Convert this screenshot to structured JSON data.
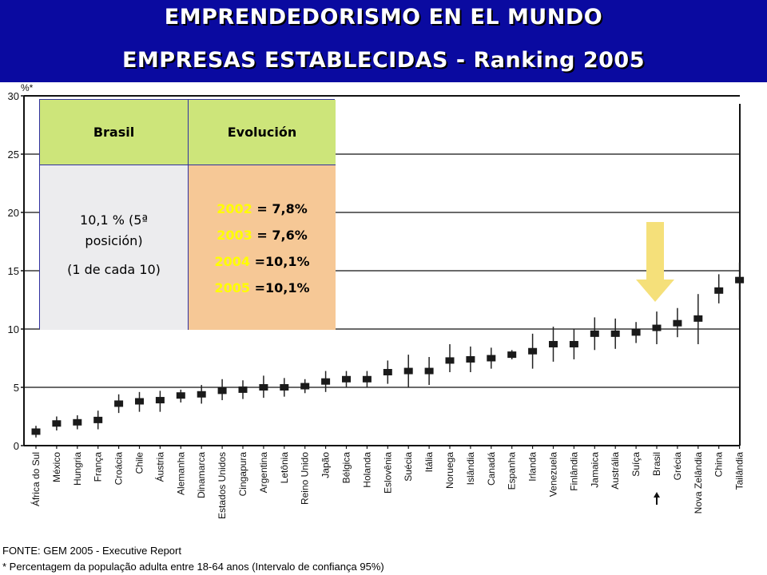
{
  "header": {
    "title1": "EMPRENDEDORISMO EN EL MUNDO",
    "title2": "EMPRESAS ESTABLECIDAS - Ranking 2005"
  },
  "table": {
    "col1_header": "Brasil",
    "col2_header": "Evolución",
    "brasil_line1": "10,1 % (5ª",
    "brasil_line2": "posición)",
    "brasil_line3": "(1 de cada 10)",
    "evolution": [
      {
        "year": "2002",
        "value": "= 7,8%"
      },
      {
        "year": "2003",
        "value": "= 7,6%"
      },
      {
        "year": "2004",
        "value": "=10,1%"
      },
      {
        "year": "2005",
        "value": "=10,1%"
      }
    ]
  },
  "footer": {
    "source": "FONTE: GEM 2005 - Executive Report",
    "note": "* Percentagem da população adulta entre 18-64 anos (Intervalo de confiança 95%)"
  },
  "colors": {
    "header_bg": "#0a0aa0",
    "table_header_bg": "#cde57a",
    "table_left_bg": "#ececee",
    "table_right_bg": "#f6c896",
    "year_text": "#ffff00",
    "arrow": "#f5e07a"
  },
  "chart_data": {
    "type": "errorbar",
    "ylabel": "%*",
    "ylim": [
      0,
      30
    ],
    "yticks": [
      0,
      5,
      10,
      15,
      20,
      25,
      30
    ],
    "grid": true,
    "highlight": "Brasil",
    "categories": [
      "África do Sul",
      "México",
      "Hungria",
      "França",
      "Croácia",
      "Chile",
      "Áustria",
      "Alemanha",
      "Dinamarca",
      "Estados Unidos",
      "Cingapura",
      "Argentina",
      "Letônia",
      "Reino Unido",
      "Japão",
      "Bélgica",
      "Holanda",
      "Eslovênia",
      "Suécia",
      "Itália",
      "Noruega",
      "Islândia",
      "Canadá",
      "Espanha",
      "Irlanda",
      "Venezuela",
      "Finlândia",
      "Jamaica",
      "Austrália",
      "Suíça",
      "Brasil",
      "Grécia",
      "Nova Zelândia",
      "China",
      "Tailândia"
    ],
    "values": [
      1.2,
      1.9,
      2.0,
      2.2,
      3.6,
      3.8,
      3.9,
      4.3,
      4.4,
      4.7,
      4.8,
      5.0,
      5.0,
      5.1,
      5.5,
      5.7,
      5.7,
      6.3,
      6.4,
      6.4,
      7.3,
      7.4,
      7.5,
      7.8,
      8.1,
      8.7,
      8.7,
      9.6,
      9.6,
      9.7,
      10.1,
      10.5,
      10.9,
      13.3,
      14.2
    ],
    "lower": [
      0.7,
      1.3,
      1.4,
      1.4,
      2.8,
      2.9,
      2.9,
      3.7,
      3.6,
      3.9,
      4.0,
      4.1,
      4.2,
      4.5,
      4.6,
      5.0,
      5.0,
      5.3,
      5.0,
      5.2,
      6.3,
      6.3,
      6.6,
      7.4,
      6.6,
      7.2,
      7.4,
      8.2,
      8.3,
      8.8,
      8.7,
      9.3,
      8.7,
      12.2,
      12.5
    ],
    "upper": [
      1.7,
      2.5,
      2.6,
      3.0,
      4.4,
      4.6,
      4.7,
      4.8,
      5.2,
      5.7,
      5.6,
      6.0,
      5.8,
      5.7,
      6.4,
      6.4,
      6.4,
      7.3,
      7.8,
      7.6,
      8.7,
      8.5,
      8.4,
      8.2,
      9.6,
      10.2,
      10.0,
      11.0,
      10.9,
      10.6,
      11.5,
      11.8,
      13.0,
      14.7,
      15.7
    ]
  }
}
